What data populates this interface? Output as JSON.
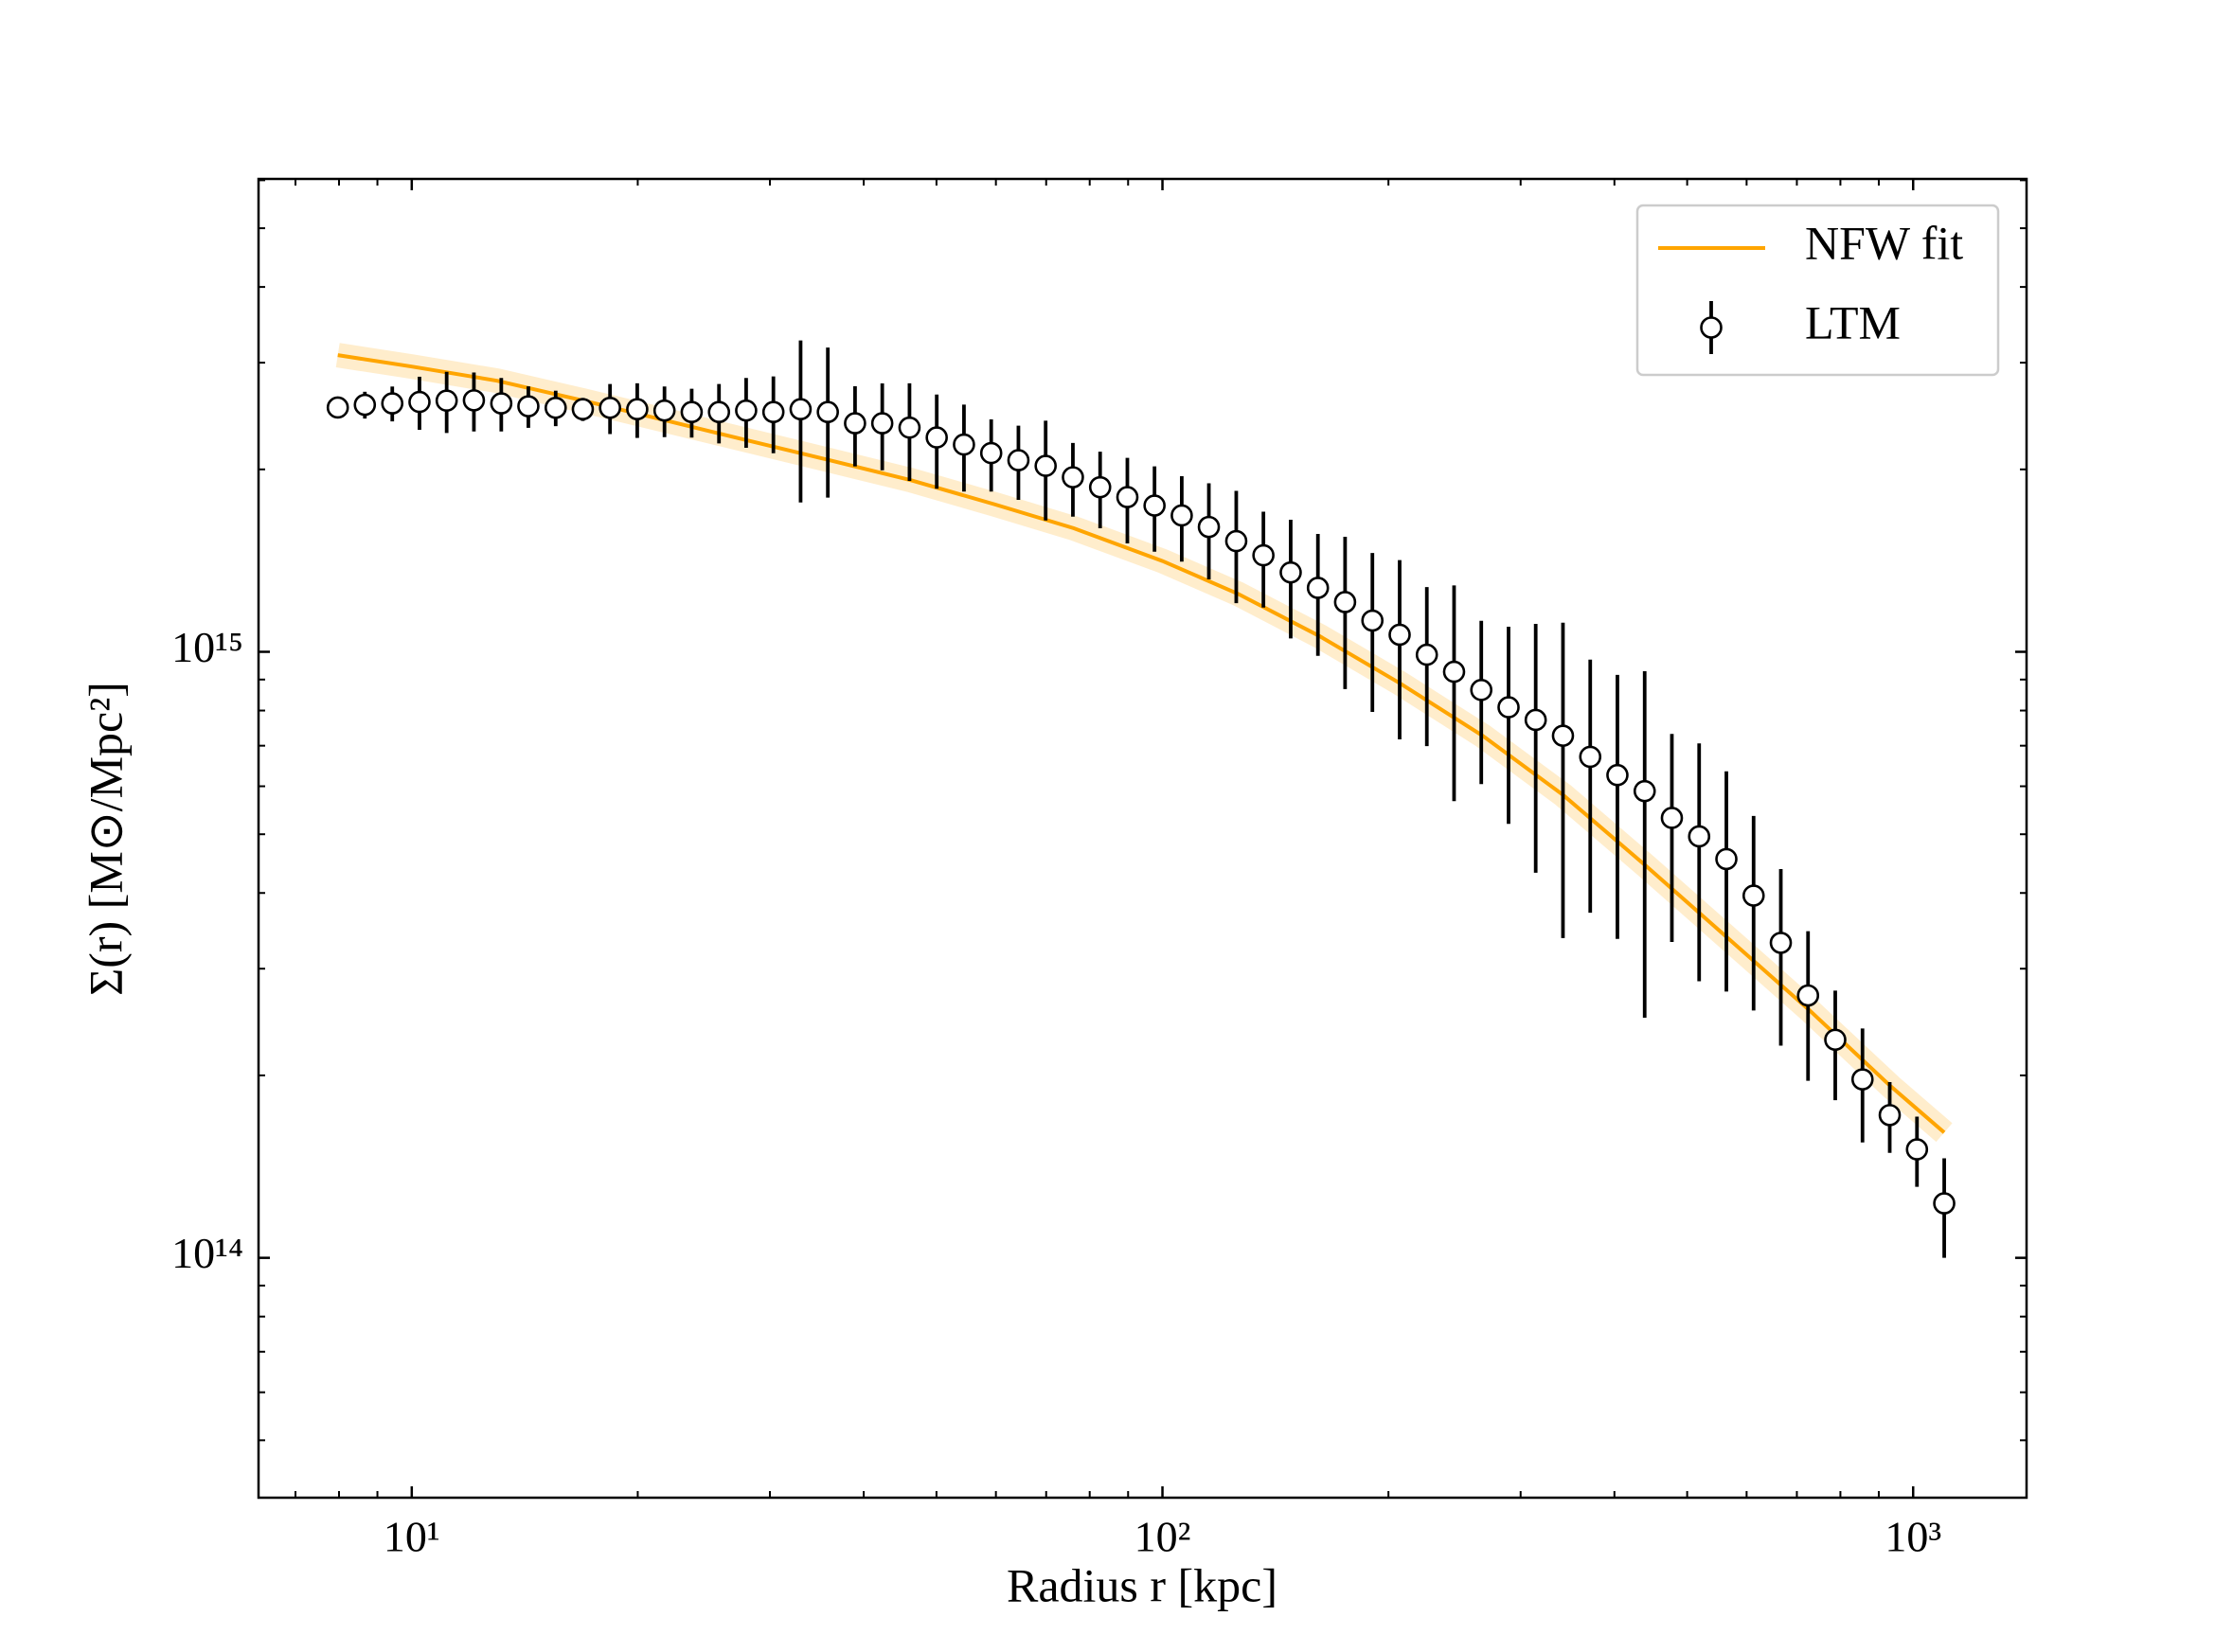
{
  "chart_data": {
    "type": "errorbar",
    "xlabel": "Radius r [kpc]",
    "ylabel": "Σ(r) [M⊙/Mpc²]",
    "xscale": "log",
    "yscale": "log",
    "xlim": [
      6.25,
      1416
    ],
    "ylim": [
      40200000000000.0,
      6030000000000000.0
    ],
    "xticks": [
      {
        "value": 10,
        "label": "10¹"
      },
      {
        "value": 100,
        "label": "10²"
      },
      {
        "value": 1000,
        "label": "10³"
      }
    ],
    "yticks": [
      {
        "value": 100000000000000.0,
        "label": "10¹⁴"
      },
      {
        "value": 1000000000000000.0,
        "label": "10¹⁵"
      }
    ],
    "legend": "upper right",
    "series": [
      {
        "name": "NFW fit",
        "type": "line",
        "color": "#ffa500",
        "x": [
          7.97,
          10,
          12.99,
          16.93,
          21.81,
          27.96,
          36.0,
          46.2,
          59.7,
          76.2,
          100,
          126,
          162,
          207,
          267,
          342,
          441,
          565,
          728,
          933,
          1100
        ],
        "values": [
          3087000000000000.0,
          2956000000000000.0,
          2801000000000000.0,
          2597000000000000.0,
          2408000000000000.0,
          2234000000000000.0,
          2071000000000000.0,
          1920000000000000.0,
          1752000000000000.0,
          1599000000000000.0,
          1412000000000000.0,
          1247000000000000.0,
          1061000000000000.0,
          888000000000000.0,
          727000000000000.0,
          580000000000000.0,
          443000000000000.0,
          338000000000000.0,
          256000000000000.0,
          192000000000000.0,
          161000000000000.0
        ]
      },
      {
        "name": "LTM",
        "type": "errorbar",
        "color": "#000000",
        "x": [
          7.97,
          8.66,
          9.42,
          10.24,
          11.13,
          12.1,
          13.16,
          14.3,
          15.55,
          16.9,
          18.37,
          19.97,
          21.71,
          23.6,
          25.66,
          27.89,
          30.32,
          32.96,
          35.83,
          38.95,
          42.34,
          46.03,
          50.04,
          54.4,
          59.14,
          64.29,
          69.89,
          75.98,
          82.6,
          89.8,
          97.6,
          106.1,
          115.3,
          125.4,
          136.3,
          148.2,
          161.1,
          175.1,
          190.4,
          207.0,
          225.0,
          244.6,
          265.9,
          289.1,
          314.2,
          341.6,
          371.4,
          403.7,
          438.9,
          477.1,
          518.7,
          563.9,
          613.0,
          666.4,
          724.4,
          787.5,
          856.1,
          930.7,
          1011.8,
          1100
        ],
        "values": [
          2530000000000000.0,
          2556000000000000.0,
          2570000000000000.0,
          2584000000000000.0,
          2597000000000000.0,
          2600000000000000.0,
          2570000000000000.0,
          2542000000000000.0,
          2527000000000000.0,
          2514000000000000.0,
          2527000000000000.0,
          2514000000000000.0,
          2501000000000000.0,
          2487000000000000.0,
          2487000000000000.0,
          2501000000000000.0,
          2487000000000000.0,
          2514000000000000.0,
          2487000000000000.0,
          2383000000000000.0,
          2383000000000000.0,
          2344000000000000.0,
          2258000000000000.0,
          2198000000000000.0,
          2128000000000000.0,
          2071000000000000.0,
          2027000000000000.0,
          1941000000000000.0,
          1869000000000000.0,
          1800000000000000.0,
          1743000000000000.0,
          1679000000000000.0,
          1607000000000000.0,
          1523000000000000.0,
          1443000000000000.0,
          1352000000000000.0,
          1275000000000000.0,
          1208000000000000.0,
          1126000000000000.0,
          1067000000000000.0,
          989000000000000.0,
          927000000000000.0,
          865000000000000.0,
          810000000000000.0,
          772000000000000.0,
          727000000000000.0,
          671000000000000.0,
          626000000000000.0,
          589000000000000.0,
          532000000000000.0,
          496000000000000.0,
          455000000000000.0,
          396000000000000.0,
          331000000000000.0,
          271000000000000.0,
          229000000000000.0,
          197000000000000.0,
          172000000000000.0,
          151000000000000.0,
          123000000000000.0
        ],
        "errors": [
          70000000000000.0,
          130000000000000.0,
          170000000000000.0,
          260000000000000.0,
          300000000000000.0,
          290000000000000.0,
          260000000000000.0,
          200000000000000.0,
          170000000000000.0,
          110000000000000.0,
          240000000000000.0,
          260000000000000.0,
          240000000000000.0,
          230000000000000.0,
          280000000000000.0,
          330000000000000.0,
          360000000000000.0,
          750000000000000.0,
          690000000000000.0,
          360000000000000.0,
          390000000000000.0,
          430000000000000.0,
          400000000000000.0,
          360000000000000.0,
          290000000000000.0,
          290000000000000.0,
          380000000000000.0,
          270000000000000.0,
          270000000000000.0,
          290000000000000.0,
          280000000000000.0,
          270000000000000.0,
          290000000000000.0,
          320000000000000.0,
          260000000000000.0,
          300000000000000.0,
          290000000000000.0,
          340000000000000.0,
          330000000000000.0,
          350000000000000.0,
          290000000000000.0,
          360000000000000.0,
          260000000000000.0,
          290000000000000.0,
          340000000000000.0,
          390000000000000.0,
          300000000000000.0,
          290000000000000.0,
          340000000000000.0,
          200000000000000.0,
          210000000000000.0,
          180000000000000.0,
          140000000000000.0,
          107000000000000.0,
          75000000000000.0,
          47000000000000.0,
          42000000000000.0,
          23000000000000.0,
          20000000000000.0,
          23000000000000.0
        ]
      }
    ]
  }
}
